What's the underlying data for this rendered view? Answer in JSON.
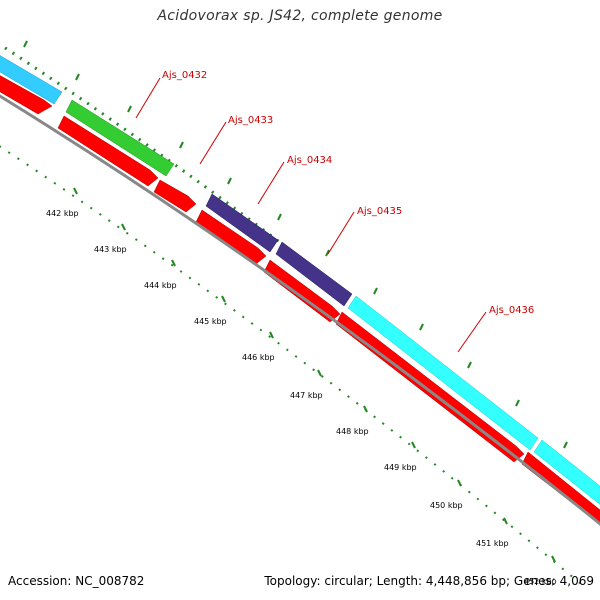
{
  "title": "Acidovorax sp. JS42, complete genome",
  "accession": "Accession: NC_008782",
  "summary": "Topology: circular; Length: 4,448,856 bp; Genes: 4,069",
  "colors": {
    "backbone": "#888888",
    "cds_arrow": "#ff0000",
    "gene_label": "#cc0000",
    "tick": "#228822",
    "cog_light_blue": "#33ccff",
    "cog_green": "#33cc33",
    "cog_navy": "#443388",
    "cog_cyan": "#33ffff"
  },
  "genes": [
    {
      "id": "Ajs_0432",
      "label": "Ajs_0432",
      "cog_color": "#33cc33"
    },
    {
      "id": "Ajs_0433",
      "label": "Ajs_0433",
      "cog_color": "#33cc33"
    },
    {
      "id": "Ajs_0434",
      "label": "Ajs_0434",
      "cog_color": "#443388"
    },
    {
      "id": "Ajs_0435",
      "label": "Ajs_0435",
      "cog_color": "#443388"
    },
    {
      "id": "Ajs_0436",
      "label": "Ajs_0436",
      "cog_color": "#33ffff"
    }
  ],
  "ticks": [
    {
      "label": "442 kbp"
    },
    {
      "label": "443 kbp"
    },
    {
      "label": "444 kbp"
    },
    {
      "label": "445 kbp"
    },
    {
      "label": "446 kbp"
    },
    {
      "label": "447 kbp"
    },
    {
      "label": "448 kbp"
    },
    {
      "label": "449 kbp"
    },
    {
      "label": "450 kbp"
    },
    {
      "label": "451 kbp"
    },
    {
      "label": "452 kbp"
    }
  ]
}
